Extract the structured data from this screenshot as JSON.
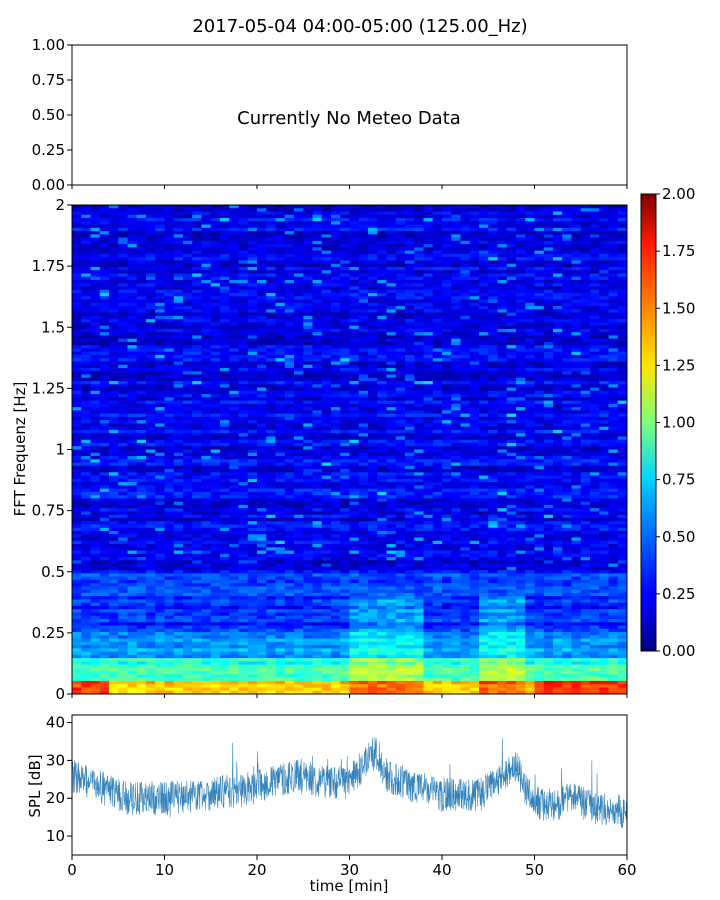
{
  "figure": {
    "title": "2017-05-04 04:00-05:00 (125.00_Hz)"
  },
  "chart_data": [
    {
      "type": "line",
      "panel": "meteo",
      "ylim": [
        0,
        1
      ],
      "y_ticks": [
        "0.00",
        "0.25",
        "0.50",
        "0.75",
        "1.00"
      ],
      "message": "Currently No Meteo Data",
      "xlim": [
        0,
        60
      ],
      "x_tick_values": [
        0,
        10,
        20,
        30,
        40,
        50,
        60
      ],
      "x_tick_labels_visible": false
    },
    {
      "type": "heatmap",
      "panel": "spectrogram",
      "ylabel": "FFT Frequenz [Hz]",
      "ylim": [
        0,
        2
      ],
      "y_ticks": [
        "0",
        "0.25",
        "0.5",
        "0.75",
        "1",
        "1.25",
        "1.5",
        "1.75",
        "2"
      ],
      "xlim": [
        0,
        60
      ],
      "colormap": "jet",
      "color_range": [
        0,
        2
      ],
      "colorbar_ticks": [
        "0.00",
        "0.25",
        "0.50",
        "0.75",
        "1.00",
        "1.25",
        "1.50",
        "1.75",
        "2.00"
      ],
      "approx_profile": {
        "background_0.5_to_2Hz": 0.22,
        "band_0.25_to_0.5Hz": 0.35,
        "band_0.15_to_0.25Hz": 0.55,
        "band_0_to_0.05Hz": 1.4
      }
    },
    {
      "type": "line",
      "panel": "spl",
      "ylabel": "SPL [dB]",
      "xlabel": "time [min]",
      "xlim": [
        0,
        60
      ],
      "ylim": [
        5,
        42
      ],
      "x_ticks": [
        "0",
        "10",
        "20",
        "30",
        "40",
        "50",
        "60"
      ],
      "y_ticks": [
        "10",
        "20",
        "30",
        "40"
      ],
      "series_color": "#1f77b4",
      "trend_x": [
        0,
        2,
        4,
        6,
        10,
        14,
        18,
        20,
        24,
        26,
        30,
        31,
        32,
        33,
        34,
        36,
        40,
        44,
        46,
        47,
        48,
        49,
        50,
        52,
        54,
        56,
        58,
        60
      ],
      "trend_y": [
        26,
        24,
        22,
        20,
        20,
        21,
        22,
        23,
        26,
        25,
        24,
        27,
        31,
        32,
        26,
        24,
        21,
        21,
        24,
        27,
        29,
        22,
        19,
        18,
        20,
        18,
        17,
        16
      ]
    }
  ]
}
